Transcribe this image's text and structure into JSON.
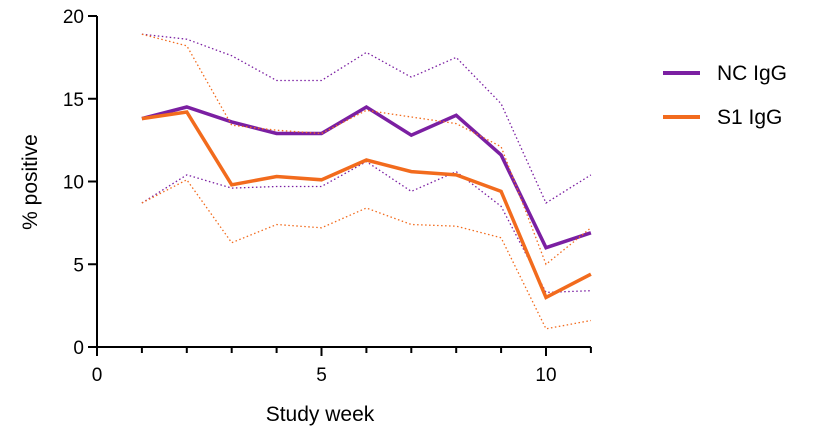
{
  "chart_data": {
    "type": "line",
    "xlabel": "Study week",
    "ylabel": "% positive",
    "xlim": [
      0,
      11
    ],
    "ylim": [
      0,
      20
    ],
    "xticks": [
      0,
      5,
      10
    ],
    "yticks": [
      0,
      5,
      10,
      15,
      20
    ],
    "grid": false,
    "legend_position": "right",
    "x": [
      1,
      2,
      3,
      4,
      5,
      6,
      7,
      8,
      9,
      10,
      11
    ],
    "series": [
      {
        "name": "NC IgG",
        "color": "#7b1fa2",
        "values": [
          13.8,
          14.5,
          13.6,
          12.9,
          12.9,
          14.5,
          12.8,
          14.0,
          11.6,
          6.0,
          6.9
        ],
        "upper": [
          18.9,
          18.6,
          17.6,
          16.1,
          16.1,
          17.8,
          16.3,
          17.5,
          14.7,
          8.7,
          10.4
        ],
        "lower": [
          8.7,
          10.4,
          9.6,
          9.7,
          9.7,
          11.2,
          9.4,
          10.6,
          8.5,
          3.3,
          3.4
        ]
      },
      {
        "name": "S1 IgG",
        "color": "#f26b1d",
        "values": [
          13.8,
          14.2,
          9.8,
          10.3,
          10.1,
          11.3,
          10.6,
          10.4,
          9.4,
          3.0,
          4.4
        ],
        "upper": [
          18.9,
          18.2,
          13.4,
          13.1,
          12.9,
          14.3,
          13.9,
          13.5,
          12.1,
          5.0,
          7.2
        ],
        "lower": [
          8.7,
          10.1,
          6.3,
          7.4,
          7.2,
          8.4,
          7.4,
          7.3,
          6.6,
          1.1,
          1.6
        ]
      }
    ]
  }
}
